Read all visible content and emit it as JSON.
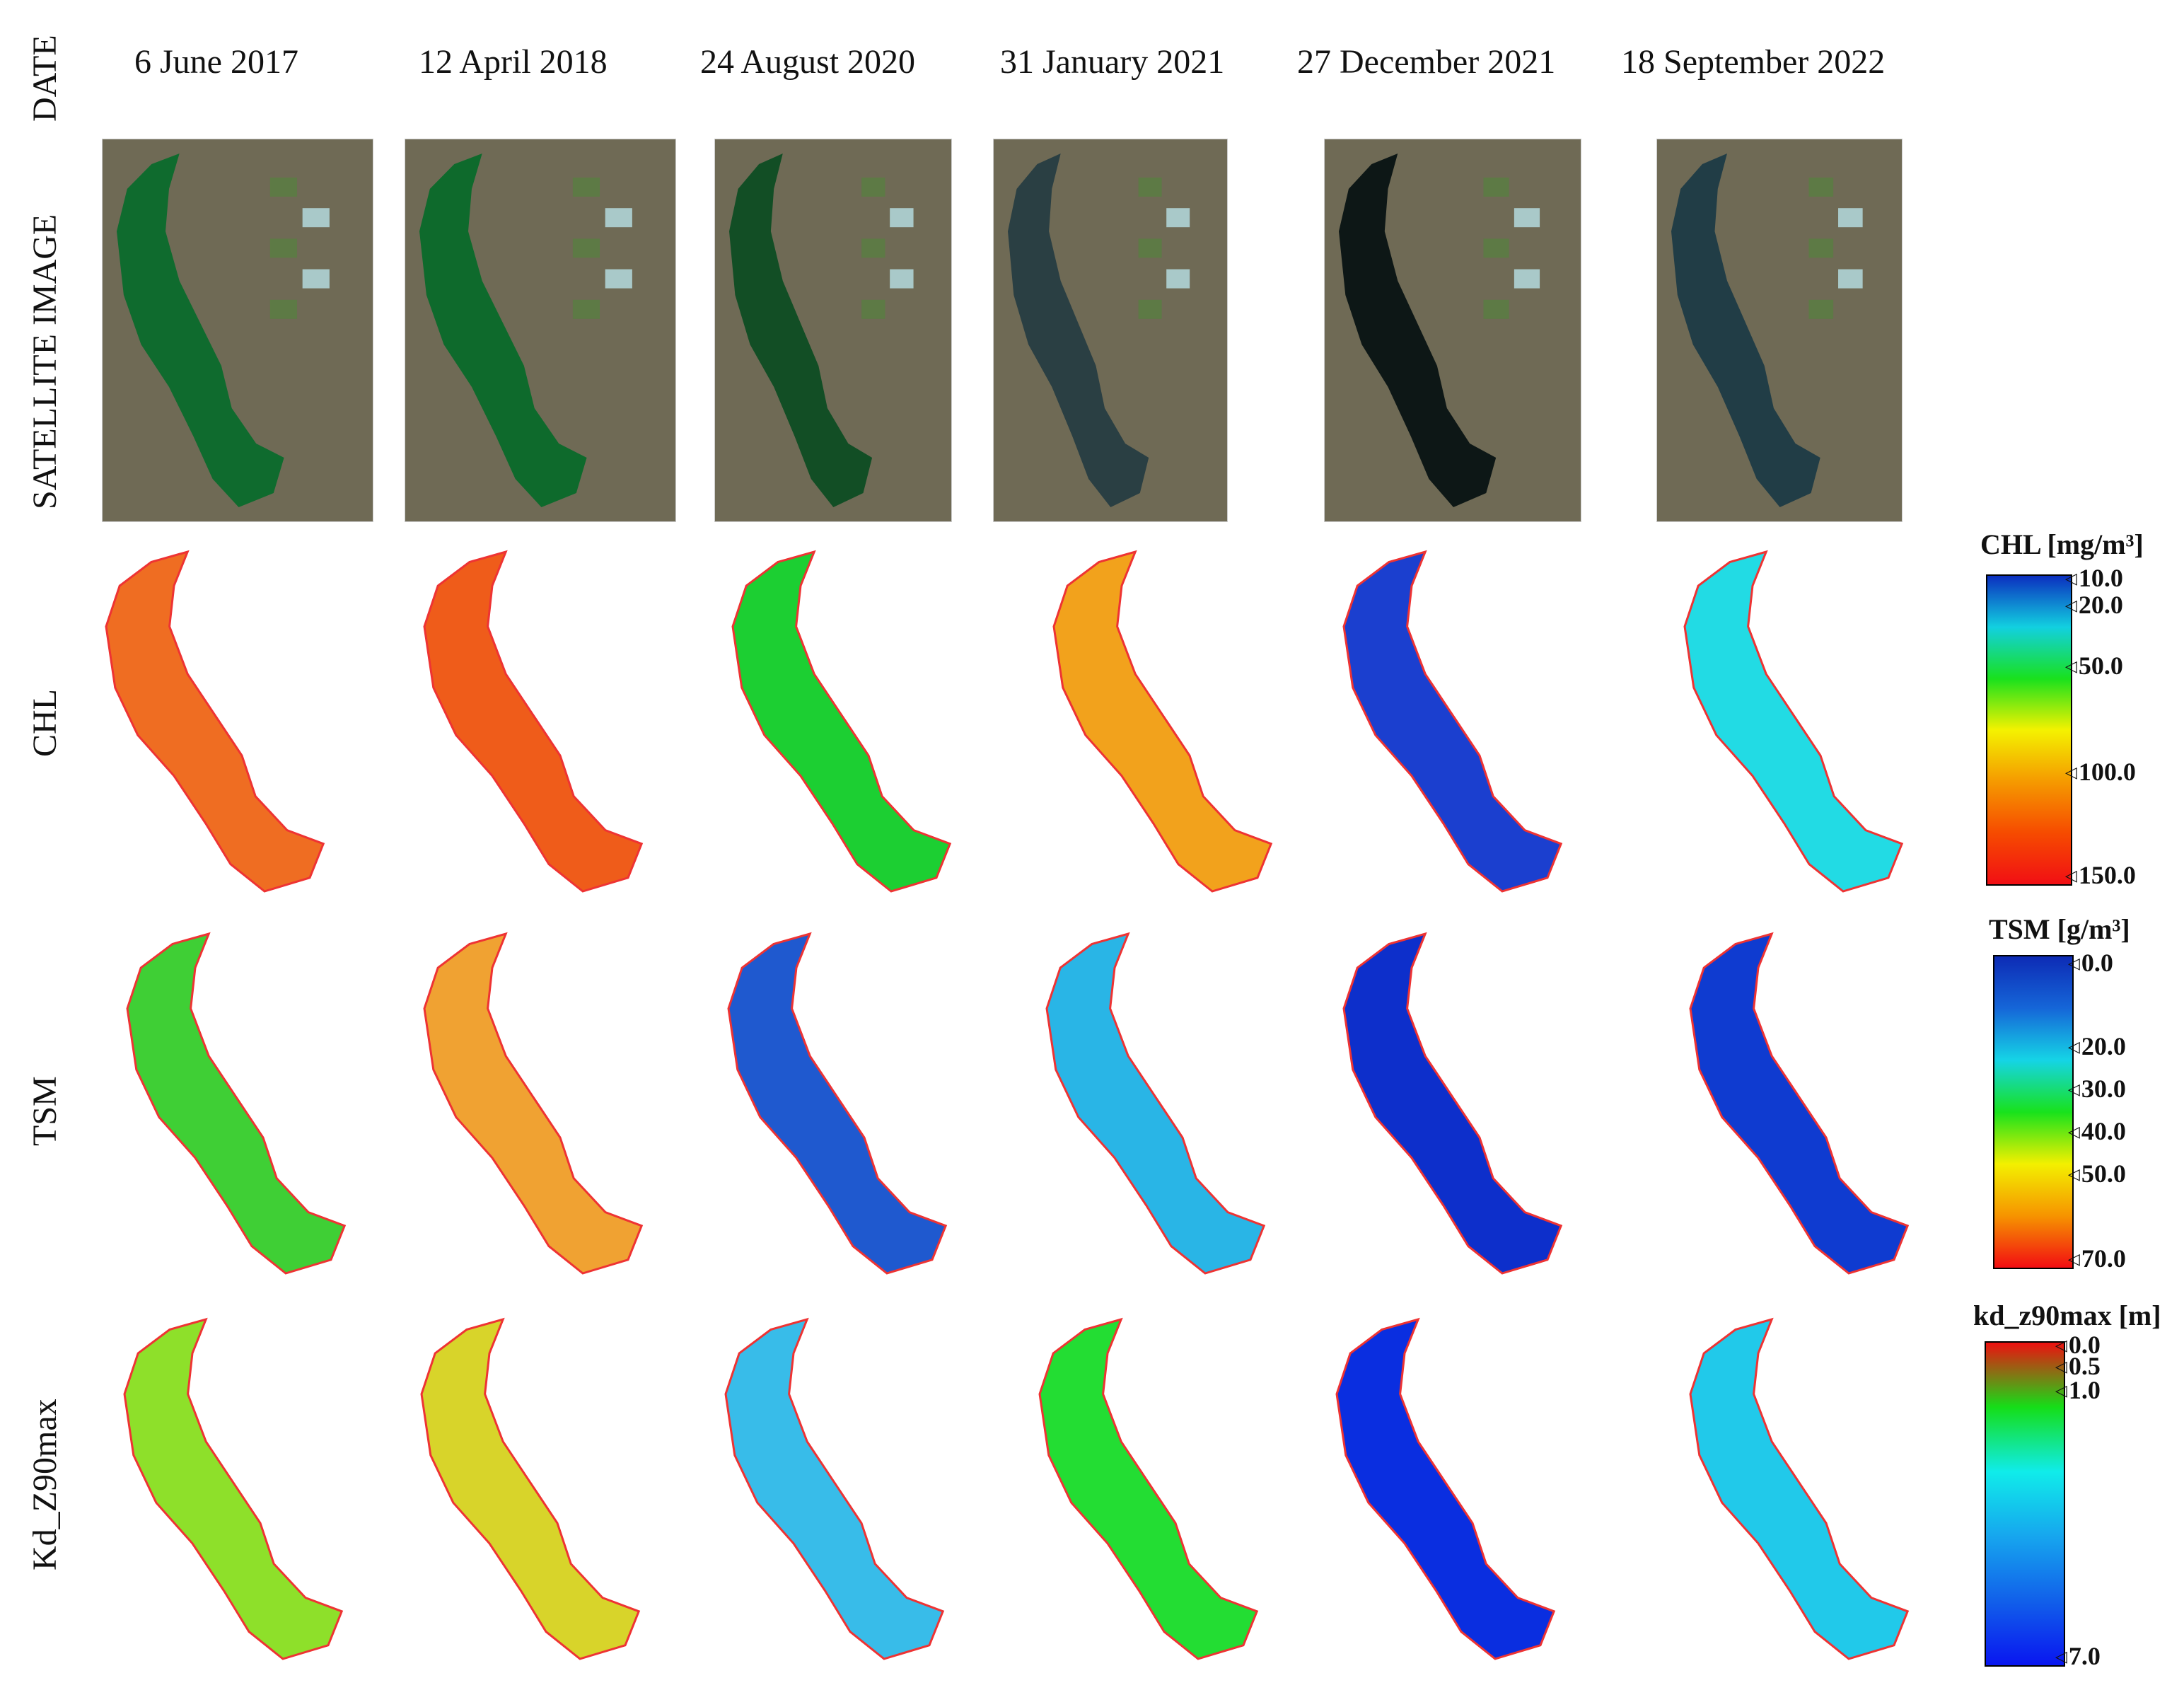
{
  "row_labels": {
    "date": "DATE",
    "satellite": "SATELLITE IMAGE",
    "chl": "CHL",
    "tsm": "TSM",
    "kd": "Kd_Z90max"
  },
  "dates": [
    "6 June 2017",
    "12 April 2018",
    "24 August 2020",
    "31 January 2021",
    "27 December 2021",
    "18 September 2022"
  ],
  "legends": {
    "chl": {
      "title": "CHL [mg/m³]",
      "ticks": [
        "10.0",
        "20.0",
        "50.0",
        "100.0",
        "150.0"
      ],
      "colors": [
        "#0b2fbf",
        "#12d0e0",
        "#19e11d",
        "#f4f200",
        "#f59a00",
        "#f64b00",
        "#f10f14"
      ]
    },
    "tsm": {
      "title": "TSM [g/m³]",
      "ticks": [
        "0.0",
        "20.0",
        "30.0",
        "40.0",
        "50.0",
        "70.0"
      ],
      "colors": [
        "#0d2bb5",
        "#1566d8",
        "#15d4e6",
        "#18e21c",
        "#f3f000",
        "#f69400",
        "#f20e12"
      ]
    },
    "kd": {
      "title": "kd_z90max [m]",
      "ticks": [
        "0.0",
        "0.5",
        "1.0",
        "7.0"
      ],
      "colors": [
        "#ee1010",
        "#15de18",
        "#10ecea",
        "#16a6ee",
        "#1160ea",
        "#0916f0"
      ]
    }
  },
  "palettes": {
    "satellite_water": [
      "#0f6b2e",
      "#0e6a2c",
      "#124e25",
      "#2a3f43",
      "#0d1716",
      "#213d46"
    ],
    "chl": [
      "#ef6d22",
      "#ef5c1a",
      "#1ccf32",
      "#f2a21c",
      "#1b3fcf",
      "#22dbe4"
    ],
    "tsm": [
      "#3fcf35",
      "#f0a232",
      "#1f59cf",
      "#29b5e6",
      "#0d2fcb",
      "#0f3bd0"
    ],
    "kd": [
      "#8ee02a",
      "#d8d42a",
      "#38bce9",
      "#23dd33",
      "#0a2ee0",
      "#21c9ea"
    ]
  }
}
